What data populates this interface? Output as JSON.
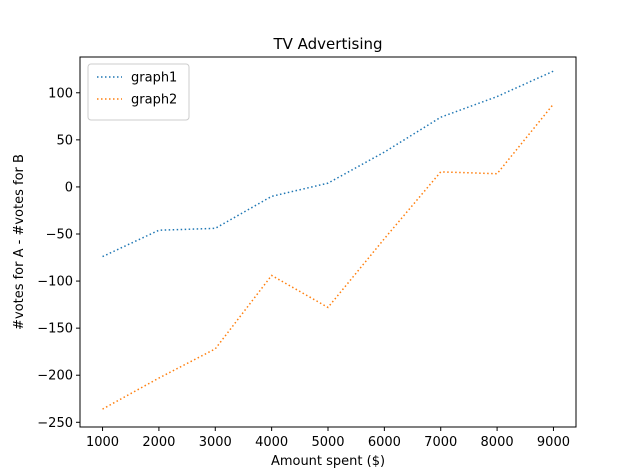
{
  "chart_data": {
    "type": "line",
    "title": "TV Advertising",
    "xlabel": "Amount spent ($)",
    "ylabel": "#votes for A - #votes for B",
    "xlim": [
      600,
      9400
    ],
    "ylim": [
      -255,
      138
    ],
    "xticks": [
      1000,
      2000,
      3000,
      4000,
      5000,
      6000,
      7000,
      8000,
      9000
    ],
    "yticks": [
      -250,
      -200,
      -150,
      -100,
      -50,
      0,
      50,
      100
    ],
    "x": [
      1000,
      2000,
      3000,
      4000,
      5000,
      6000,
      7000,
      8000,
      9000
    ],
    "grid": false,
    "legend_position": "top-left",
    "series": [
      {
        "name": "graph1",
        "color": "#1f77b4",
        "linestyle": "dotted",
        "values": [
          -74,
          -46,
          -44,
          -10,
          4,
          37,
          74,
          96,
          123
        ]
      },
      {
        "name": "graph2",
        "color": "#ff7f0e",
        "linestyle": "dotted",
        "values": [
          -236,
          -203,
          -172,
          -94,
          -128,
          -55,
          16,
          14,
          88
        ]
      }
    ]
  }
}
